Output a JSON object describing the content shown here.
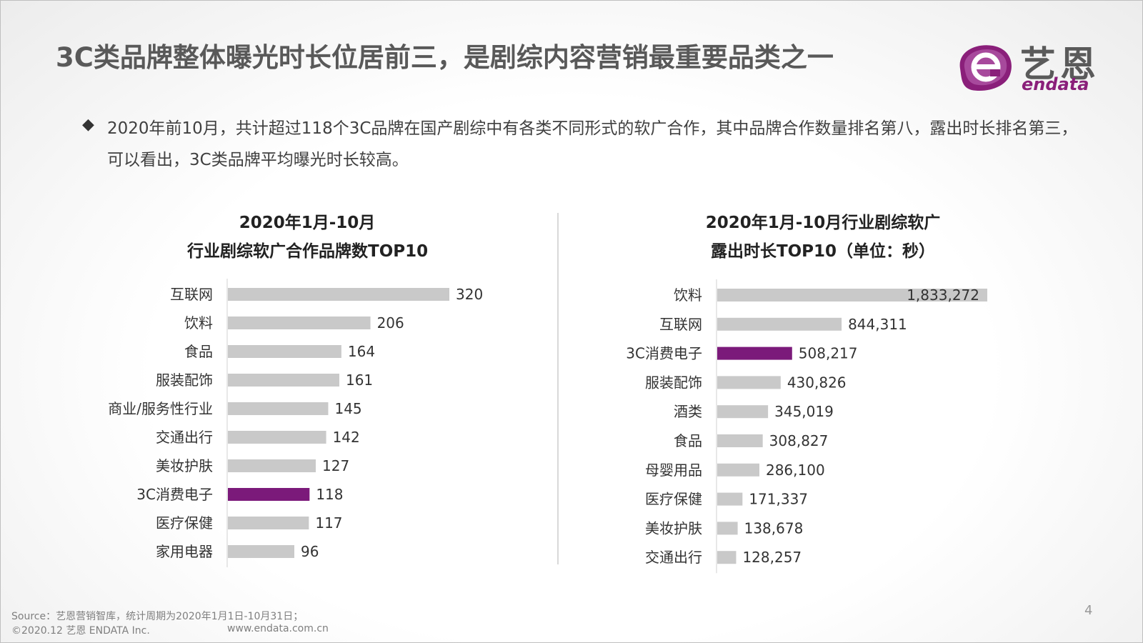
{
  "header": {
    "title": "3C类品牌整体曝光时长位居前三，是剧综内容营销最重要品类之一",
    "logo_cn": "艺恩",
    "logo_en": "endata"
  },
  "bullet": {
    "text": "2020年前10月，共计超过118个3C品牌在国产剧综中有各类不同形式的软广合作，其中品牌合作数量排名第八，露出时长排名第三，可以看出，3C类品牌平均曝光时长较高。"
  },
  "colors": {
    "bar_default": "#c9c9c9",
    "bar_highlight": "#7b1a7a",
    "logo_magenta": "#8a1f7a"
  },
  "chart_data": [
    {
      "type": "bar",
      "orientation": "horizontal",
      "title_lines": [
        "2020年1月-10月",
        "行业剧综软广合作品牌数TOP10"
      ],
      "categories": [
        "互联网",
        "饮料",
        "食品",
        "服装配饰",
        "商业/服务性行业",
        "交通出行",
        "美妆护肤",
        "3C消费电子",
        "医疗保健",
        "家用电器"
      ],
      "values": [
        320,
        206,
        164,
        161,
        145,
        142,
        127,
        118,
        117,
        96
      ],
      "labels": [
        "320",
        "206",
        "164",
        "161",
        "145",
        "142",
        "127",
        "118",
        "117",
        "96"
      ],
      "highlight": "3C消费电子",
      "xlim": [
        0,
        320
      ],
      "grid": false
    },
    {
      "type": "bar",
      "orientation": "horizontal",
      "title_lines": [
        "2020年1月-10月行业剧综软广",
        "露出时长TOP10（单位：秒）"
      ],
      "categories": [
        "饮料",
        "互联网",
        "3C消费电子",
        "服装配饰",
        "酒类",
        "食品",
        "母婴用品",
        "医疗保健",
        "美妆护肤",
        "交通出行"
      ],
      "values": [
        1833272,
        844311,
        508217,
        430826,
        345019,
        308827,
        286100,
        171337,
        138678,
        128257
      ],
      "labels": [
        "1,833,272",
        "844,311",
        "508,217",
        "430,826",
        "345,019",
        "308,827",
        "286,100",
        "171,337",
        "138,678",
        "128,257"
      ],
      "highlight": "3C消费电子",
      "xlim": [
        0,
        1833272
      ],
      "grid": false
    }
  ],
  "footer": {
    "source": "Source：艺恩营销智库，统计周期为2020年1月1日-10月31日；",
    "copyright": "©2020.12 艺恩 ENDATA Inc.",
    "website": "www.endata.com.cn",
    "page_number": "4"
  }
}
